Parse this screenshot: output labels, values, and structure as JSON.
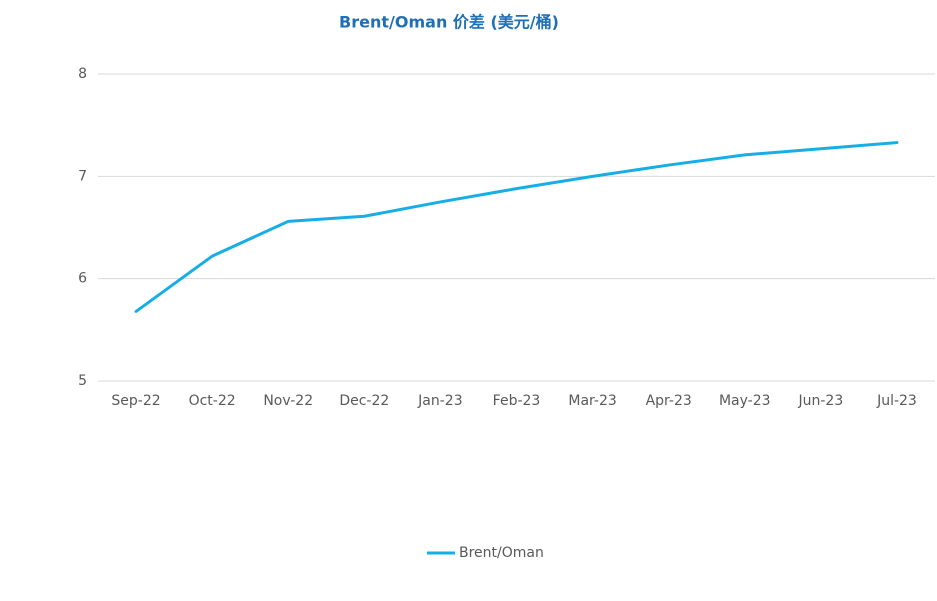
{
  "chart_data": {
    "type": "line",
    "title": "Brent/Oman 价差 (美元/桶)",
    "categories": [
      "Sep-22",
      "Oct-22",
      "Nov-22",
      "Dec-22",
      "Jan-23",
      "Feb-23",
      "Mar-23",
      "Apr-23",
      "May-23",
      "Jun-23",
      "Jul-23"
    ],
    "series": [
      {
        "name": "Brent/Oman",
        "color": "#17aee6",
        "values": [
          5.68,
          6.22,
          6.56,
          6.61,
          6.75,
          6.88,
          7.0,
          7.11,
          7.21,
          7.27,
          7.33
        ]
      }
    ],
    "ylim": [
      5,
      8
    ],
    "yticks": [
      5,
      6,
      7,
      8
    ],
    "grid": true,
    "legend": "bottom"
  }
}
